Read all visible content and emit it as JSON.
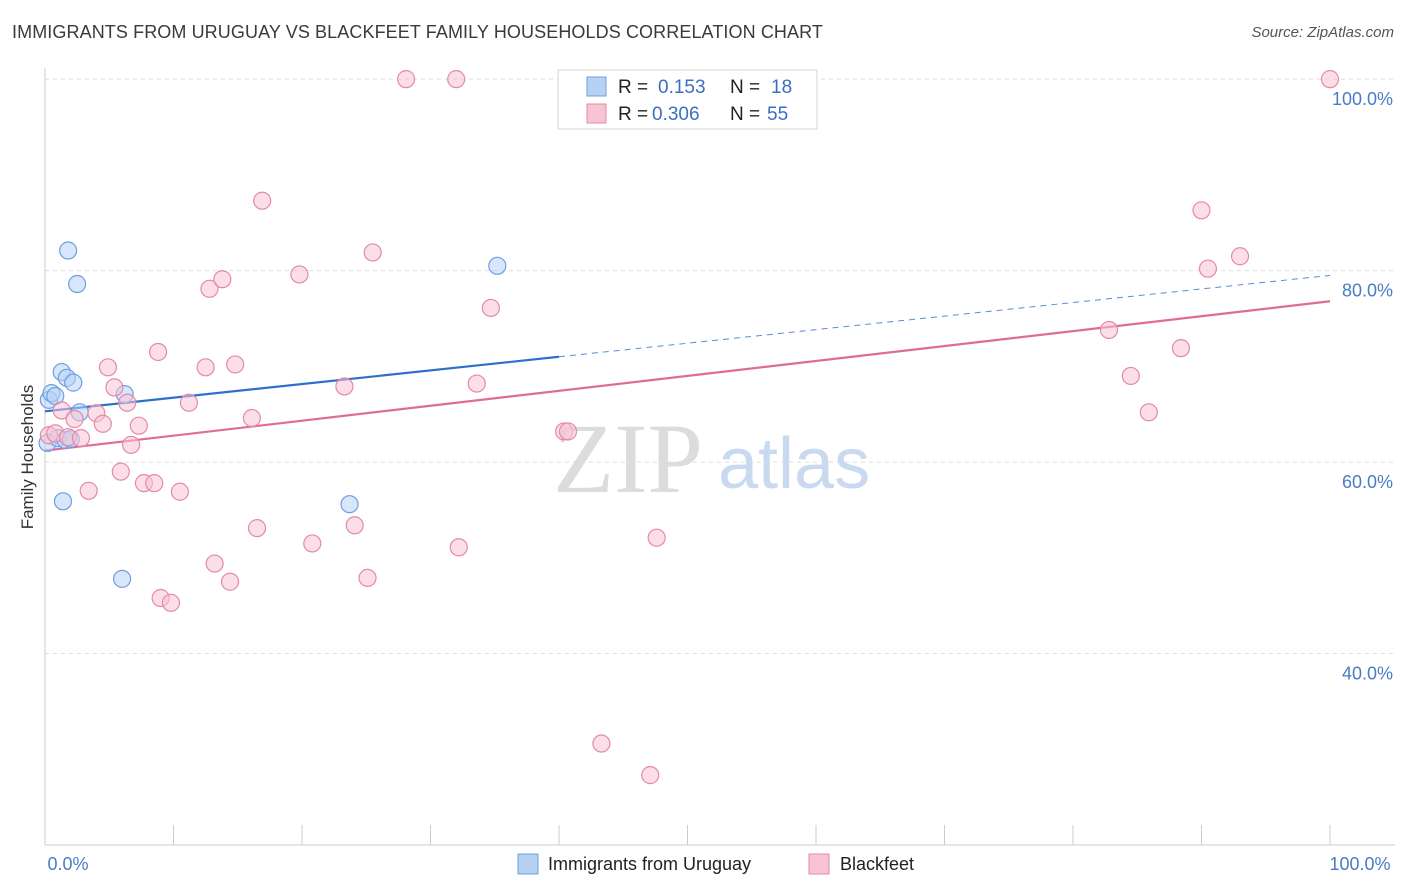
{
  "title": "IMMIGRANTS FROM URUGUAY VS BLACKFEET FAMILY HOUSEHOLDS CORRELATION CHART",
  "source": "Source: ZipAtlas.com",
  "watermark": {
    "zip": "ZIP",
    "atlas": "atlas"
  },
  "colors": {
    "uruguay_fill": "#b7d1f5",
    "uruguay_stroke": "#6f9ee0",
    "uruguay_line": "#2e6fcc",
    "blackfeet_fill": "#f8c3d3",
    "blackfeet_stroke": "#e48aa8",
    "blackfeet_line": "#e06c96",
    "grid": "#dddddd",
    "tick_text": "#4a7cc4"
  },
  "legend": {
    "r_label": "R =",
    "n_label": "N =",
    "rows": [
      {
        "name": "uruguay",
        "r": "0.153",
        "n": "18"
      },
      {
        "name": "blackfeet",
        "r": "0.306",
        "n": "55"
      }
    ]
  },
  "bottom_legend": [
    "Immigrants from Uruguay",
    "Blackfeet"
  ],
  "chart_data": {
    "type": "scatter",
    "title": "IMMIGRANTS FROM URUGUAY VS BLACKFEET FAMILY HOUSEHOLDS CORRELATION CHART",
    "xlabel": "",
    "ylabel": "Family Households",
    "xlim": [
      0,
      100
    ],
    "ylim": [
      20,
      102
    ],
    "x_tick_labels": [
      "0.0%",
      "100.0%"
    ],
    "y_ticks": [
      40,
      60,
      80,
      100
    ],
    "y_tick_labels": [
      "40.0%",
      "60.0%",
      "80.0%",
      "100.0%"
    ],
    "grid": true,
    "series": [
      {
        "name": "Immigrants from Uruguay",
        "color_key": "uruguay",
        "trend": {
          "x0": 0,
          "y0": 65.3,
          "x1": 40,
          "y1": 71.0,
          "dash_to_x": 100,
          "dash_to_y": 79.5
        },
        "points": [
          {
            "x": 0.2,
            "y": 62.0
          },
          {
            "x": 0.3,
            "y": 66.5
          },
          {
            "x": 0.5,
            "y": 67.2
          },
          {
            "x": 0.8,
            "y": 66.9
          },
          {
            "x": 1.0,
            "y": 62.5
          },
          {
            "x": 1.3,
            "y": 69.4
          },
          {
            "x": 1.4,
            "y": 55.9
          },
          {
            "x": 1.6,
            "y": 62.3
          },
          {
            "x": 1.7,
            "y": 68.8
          },
          {
            "x": 1.8,
            "y": 82.1
          },
          {
            "x": 2.0,
            "y": 62.4
          },
          {
            "x": 2.2,
            "y": 68.3
          },
          {
            "x": 2.5,
            "y": 78.6
          },
          {
            "x": 2.7,
            "y": 65.2
          },
          {
            "x": 6.0,
            "y": 47.8
          },
          {
            "x": 6.2,
            "y": 67.1
          },
          {
            "x": 23.7,
            "y": 55.6
          },
          {
            "x": 35.2,
            "y": 80.5
          }
        ]
      },
      {
        "name": "Blackfeet",
        "color_key": "blackfeet",
        "trend": {
          "x0": 0,
          "y0": 61.2,
          "x1": 100,
          "y1": 76.8
        },
        "points": [
          {
            "x": 0.3,
            "y": 62.8
          },
          {
            "x": 0.8,
            "y": 63.0
          },
          {
            "x": 1.3,
            "y": 65.4
          },
          {
            "x": 1.8,
            "y": 62.6
          },
          {
            "x": 2.3,
            "y": 64.5
          },
          {
            "x": 2.8,
            "y": 62.5
          },
          {
            "x": 3.4,
            "y": 57.0
          },
          {
            "x": 4.0,
            "y": 65.1
          },
          {
            "x": 4.5,
            "y": 64.0
          },
          {
            "x": 4.9,
            "y": 69.9
          },
          {
            "x": 5.4,
            "y": 67.8
          },
          {
            "x": 5.9,
            "y": 59.0
          },
          {
            "x": 6.4,
            "y": 66.2
          },
          {
            "x": 6.7,
            "y": 61.8
          },
          {
            "x": 7.3,
            "y": 63.8
          },
          {
            "x": 7.7,
            "y": 57.8
          },
          {
            "x": 8.5,
            "y": 57.8
          },
          {
            "x": 8.8,
            "y": 71.5
          },
          {
            "x": 9.0,
            "y": 45.8
          },
          {
            "x": 9.8,
            "y": 45.3
          },
          {
            "x": 10.5,
            "y": 56.9
          },
          {
            "x": 11.2,
            "y": 66.2
          },
          {
            "x": 12.5,
            "y": 69.9
          },
          {
            "x": 12.8,
            "y": 78.1
          },
          {
            "x": 13.2,
            "y": 49.4
          },
          {
            "x": 13.8,
            "y": 79.1
          },
          {
            "x": 14.4,
            "y": 47.5
          },
          {
            "x": 14.8,
            "y": 70.2
          },
          {
            "x": 16.1,
            "y": 64.6
          },
          {
            "x": 16.5,
            "y": 53.1
          },
          {
            "x": 16.9,
            "y": 87.3
          },
          {
            "x": 19.8,
            "y": 79.6
          },
          {
            "x": 20.8,
            "y": 51.5
          },
          {
            "x": 23.3,
            "y": 67.9
          },
          {
            "x": 24.1,
            "y": 53.4
          },
          {
            "x": 25.1,
            "y": 47.9
          },
          {
            "x": 25.5,
            "y": 81.9
          },
          {
            "x": 28.1,
            "y": 100.0
          },
          {
            "x": 32.0,
            "y": 100.0
          },
          {
            "x": 32.2,
            "y": 51.1
          },
          {
            "x": 33.6,
            "y": 68.2
          },
          {
            "x": 34.7,
            "y": 76.1
          },
          {
            "x": 40.4,
            "y": 63.2
          },
          {
            "x": 40.7,
            "y": 63.2
          },
          {
            "x": 43.3,
            "y": 30.6
          },
          {
            "x": 47.1,
            "y": 27.3
          },
          {
            "x": 47.6,
            "y": 52.1
          },
          {
            "x": 82.8,
            "y": 73.8
          },
          {
            "x": 84.5,
            "y": 69.0
          },
          {
            "x": 85.9,
            "y": 65.2
          },
          {
            "x": 88.4,
            "y": 71.9
          },
          {
            "x": 90.0,
            "y": 86.3
          },
          {
            "x": 90.5,
            "y": 80.2
          },
          {
            "x": 93.0,
            "y": 81.5
          },
          {
            "x": 100.0,
            "y": 100.0
          }
        ]
      }
    ]
  }
}
